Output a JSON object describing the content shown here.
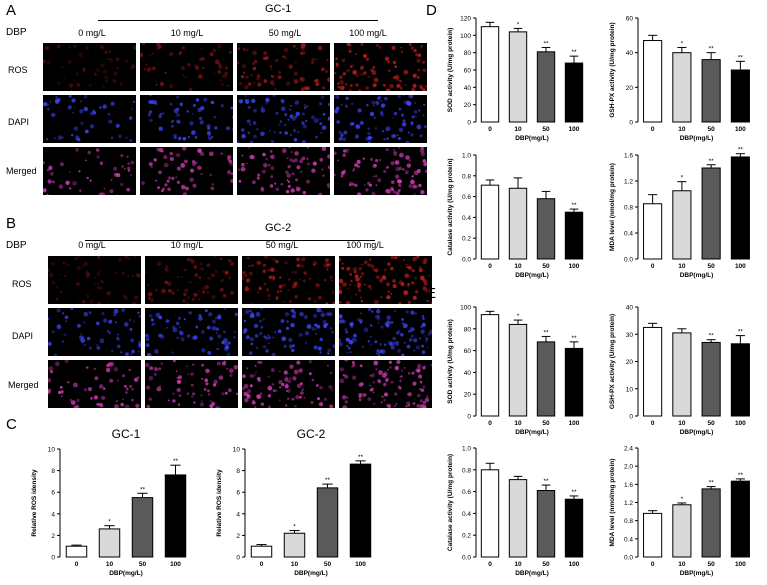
{
  "panels": {
    "A": {
      "letter": "A",
      "dbp_label": "DBP",
      "group": "GC-1",
      "doses": [
        "0 mg/L",
        "10 mg/L",
        "50 mg/L",
        "100 mg/L"
      ],
      "rows": [
        "ROS",
        "DAPI",
        "Merged"
      ]
    },
    "B": {
      "letter": "B",
      "dbp_label": "DBP",
      "group": "GC-2",
      "doses": [
        "0 mg/L",
        "10 mg/L",
        "50 mg/L",
        "100 mg/L"
      ],
      "rows": [
        "ROS",
        "DAPI",
        "Merged"
      ]
    },
    "C": {
      "letter": "C"
    },
    "D": {
      "letter": "D"
    },
    "E": {
      "letter": "E"
    }
  },
  "colors": {
    "ros": "#c81e1e",
    "dapi": "#3c46ff",
    "merged": "#d23cb4",
    "bar_fills": [
      "#ffffff",
      "#d9d9d9",
      "#5a5a5a",
      "#000000"
    ]
  },
  "chart_data": [
    {
      "id": "C1",
      "panel": "C",
      "type": "bar",
      "title": "GC-1",
      "categories": [
        "0",
        "10",
        "50",
        "100"
      ],
      "values": [
        1.0,
        2.6,
        5.5,
        7.6
      ],
      "errors": [
        0.1,
        0.3,
        0.4,
        0.9
      ],
      "significance": [
        "",
        "*",
        "**",
        "**"
      ],
      "xlabel": "DBP(mg/L)",
      "ylabel": "Relative ROS idensity",
      "ylim": [
        0,
        10
      ],
      "yticks": [
        0,
        2,
        4,
        6,
        8,
        10
      ]
    },
    {
      "id": "C2",
      "panel": "C",
      "type": "bar",
      "title": "GC-2",
      "categories": [
        "0",
        "10",
        "50",
        "100"
      ],
      "values": [
        1.0,
        2.2,
        6.4,
        8.6
      ],
      "errors": [
        0.15,
        0.25,
        0.35,
        0.3
      ],
      "significance": [
        "",
        "*",
        "**",
        "**"
      ],
      "xlabel": "DBP(mg/L)",
      "ylabel": "Relative ROS idensity",
      "ylim": [
        0,
        10
      ],
      "yticks": [
        0,
        2,
        4,
        6,
        8,
        10
      ]
    },
    {
      "id": "D1",
      "panel": "D",
      "type": "bar",
      "categories": [
        "0",
        "10",
        "50",
        "100"
      ],
      "values": [
        110,
        104,
        81,
        68
      ],
      "errors": [
        5,
        4,
        5,
        8
      ],
      "significance": [
        "",
        "*",
        "**",
        "**"
      ],
      "xlabel": "DBP(mg/L)",
      "ylabel": "SOD activity (U/mg protein)",
      "ylim": [
        0,
        120
      ],
      "yticks": [
        0,
        20,
        40,
        60,
        80,
        100,
        120
      ]
    },
    {
      "id": "D2",
      "panel": "D",
      "type": "bar",
      "categories": [
        "0",
        "10",
        "50",
        "100"
      ],
      "values": [
        47,
        40,
        36,
        30
      ],
      "errors": [
        3,
        3,
        4,
        5
      ],
      "significance": [
        "",
        "*",
        "**",
        "**"
      ],
      "xlabel": "DBP(mg/L)",
      "ylabel": "GSH-PX activity (U/mg protein)",
      "ylim": [
        0,
        60
      ],
      "yticks": [
        0,
        20,
        40,
        60
      ]
    },
    {
      "id": "D3",
      "panel": "D",
      "type": "bar",
      "categories": [
        "0",
        "10",
        "50",
        "100"
      ],
      "values": [
        0.71,
        0.68,
        0.58,
        0.45
      ],
      "errors": [
        0.05,
        0.1,
        0.07,
        0.03
      ],
      "significance": [
        "",
        "",
        "",
        "**"
      ],
      "xlabel": "DBP(mg/L)",
      "ylabel": "Catalase activity (U/mg protein)",
      "ylim": [
        0,
        1.0
      ],
      "yticks": [
        0.0,
        0.2,
        0.4,
        0.6,
        0.8,
        1.0
      ]
    },
    {
      "id": "D4",
      "panel": "D",
      "type": "bar",
      "categories": [
        "0",
        "10",
        "50",
        "100"
      ],
      "values": [
        0.85,
        1.05,
        1.4,
        1.57
      ],
      "errors": [
        0.14,
        0.14,
        0.05,
        0.05
      ],
      "significance": [
        "",
        "*",
        "**",
        "**"
      ],
      "xlabel": "DBP(mg/L)",
      "ylabel": "MDA level (nmol/mg protein)",
      "ylim": [
        0,
        1.6
      ],
      "yticks": [
        0.0,
        0.4,
        0.8,
        1.2,
        1.6
      ]
    },
    {
      "id": "E1",
      "panel": "E",
      "type": "bar",
      "categories": [
        "0",
        "10",
        "50",
        "100"
      ],
      "values": [
        93,
        84,
        68,
        62
      ],
      "errors": [
        3,
        4,
        5,
        6
      ],
      "significance": [
        "",
        "*",
        "**",
        "**"
      ],
      "xlabel": "DBP(mg/L)",
      "ylabel": "SOD activity (U/mg protein)",
      "ylim": [
        0,
        100
      ],
      "yticks": [
        0,
        20,
        40,
        60,
        80,
        100
      ]
    },
    {
      "id": "E2",
      "panel": "E",
      "type": "bar",
      "categories": [
        "0",
        "10",
        "50",
        "100"
      ],
      "values": [
        32.5,
        30.5,
        27,
        26.5
      ],
      "errors": [
        1.5,
        1.5,
        1,
        3
      ],
      "significance": [
        "",
        "",
        "**",
        "**"
      ],
      "xlabel": "DBP(mg/L)",
      "ylabel": "GSH-PX activity (U/mg protein)",
      "ylim": [
        0,
        40
      ],
      "yticks": [
        0,
        10,
        20,
        30,
        40
      ]
    },
    {
      "id": "E3",
      "panel": "E",
      "type": "bar",
      "categories": [
        "0",
        "10",
        "50",
        "100"
      ],
      "values": [
        0.8,
        0.71,
        0.61,
        0.53
      ],
      "errors": [
        0.06,
        0.03,
        0.05,
        0.03
      ],
      "significance": [
        "",
        "",
        "**",
        "**"
      ],
      "xlabel": "DBP(mg/L)",
      "ylabel": "Catalase activity (U/mg protein)",
      "ylim": [
        0,
        1.0
      ],
      "yticks": [
        0.0,
        0.2,
        0.4,
        0.6,
        0.8,
        1.0
      ]
    },
    {
      "id": "E4",
      "panel": "E",
      "type": "bar",
      "categories": [
        "0",
        "10",
        "50",
        "100"
      ],
      "values": [
        0.96,
        1.15,
        1.5,
        1.67
      ],
      "errors": [
        0.06,
        0.04,
        0.05,
        0.05
      ],
      "significance": [
        "",
        "*",
        "**",
        "**"
      ],
      "xlabel": "DBP(mg/L)",
      "ylabel": "MDA level (nmol/mg protein)",
      "ylim": [
        0,
        2.4
      ],
      "yticks": [
        0.0,
        0.4,
        0.8,
        1.2,
        1.6,
        2.0,
        2.4
      ]
    }
  ]
}
